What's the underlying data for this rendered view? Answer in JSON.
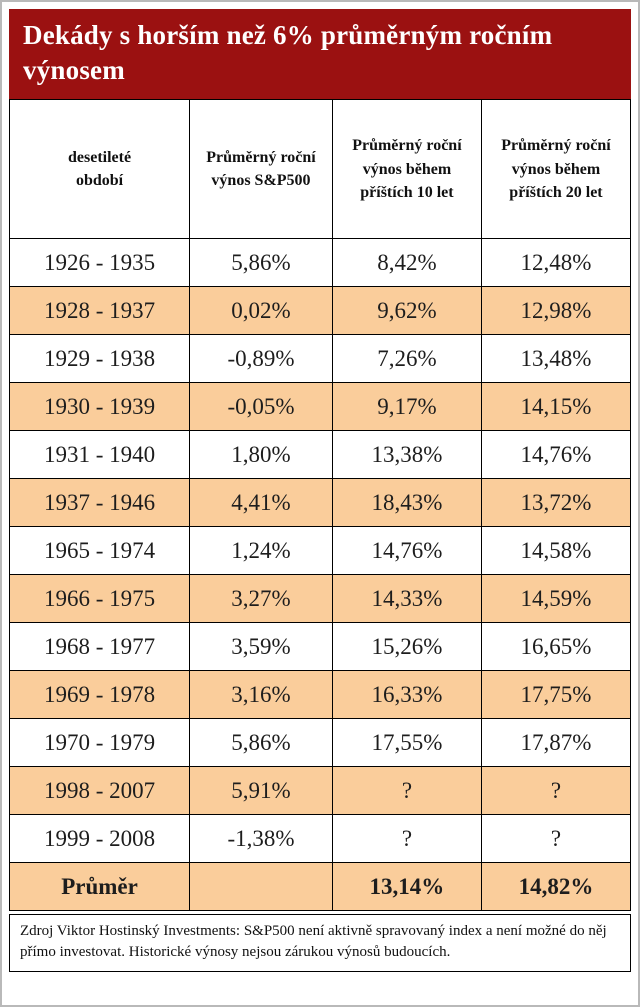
{
  "colors": {
    "title_bg": "#9b1111",
    "title_text": "#ffffff",
    "row_highlight": "#facd9b",
    "grid_line": "#000000"
  },
  "chart_data": {
    "type": "table",
    "title": "Dekády s horším než 6% průměrným ročním výnosem",
    "columns": [
      "desetileté období",
      "Průměrný roční výnos S&P500",
      "Průměrný roční výnos během příštích 10 let",
      "Průměrný roční výnos během příštích 20 let"
    ],
    "rows": [
      {
        "period": "1926 - 1935",
        "sp500": "5,86%",
        "next10": "8,42%",
        "next20": "12,48%",
        "highlight": false,
        "bold": false
      },
      {
        "period": "1928 - 1937",
        "sp500": "0,02%",
        "next10": "9,62%",
        "next20": "12,98%",
        "highlight": true,
        "bold": false
      },
      {
        "period": "1929 - 1938",
        "sp500": "-0,89%",
        "next10": "7,26%",
        "next20": "13,48%",
        "highlight": false,
        "bold": false
      },
      {
        "period": "1930 - 1939",
        "sp500": "-0,05%",
        "next10": "9,17%",
        "next20": "14,15%",
        "highlight": true,
        "bold": false
      },
      {
        "period": "1931 - 1940",
        "sp500": "1,80%",
        "next10": "13,38%",
        "next20": "14,76%",
        "highlight": false,
        "bold": false
      },
      {
        "period": "1937 - 1946",
        "sp500": "4,41%",
        "next10": "18,43%",
        "next20": "13,72%",
        "highlight": true,
        "bold": false
      },
      {
        "period": "1965 - 1974",
        "sp500": "1,24%",
        "next10": "14,76%",
        "next20": "14,58%",
        "highlight": false,
        "bold": false
      },
      {
        "period": "1966 - 1975",
        "sp500": "3,27%",
        "next10": "14,33%",
        "next20": "14,59%",
        "highlight": true,
        "bold": false
      },
      {
        "period": "1968 - 1977",
        "sp500": "3,59%",
        "next10": "15,26%",
        "next20": "16,65%",
        "highlight": false,
        "bold": false
      },
      {
        "period": "1969 - 1978",
        "sp500": "3,16%",
        "next10": "16,33%",
        "next20": "17,75%",
        "highlight": true,
        "bold": false
      },
      {
        "period": "1970 - 1979",
        "sp500": "5,86%",
        "next10": "17,55%",
        "next20": "17,87%",
        "highlight": false,
        "bold": false
      },
      {
        "period": "1998 - 2007",
        "sp500": "5,91%",
        "next10": "?",
        "next20": "?",
        "highlight": true,
        "bold": false
      },
      {
        "period": "1999 - 2008",
        "sp500": "-1,38%",
        "next10": "?",
        "next20": "?",
        "highlight": false,
        "bold": false
      },
      {
        "period": "Průměr",
        "sp500": "",
        "next10": "13,14%",
        "next20": "14,82%",
        "highlight": true,
        "bold": true
      }
    ],
    "footnote": "Zdroj Viktor Hostinský Investments: S&P500 není aktivně spravovaný index a není možné do něj přímo investovat. Historické výnosy nejsou zárukou výnosů budoucích."
  }
}
